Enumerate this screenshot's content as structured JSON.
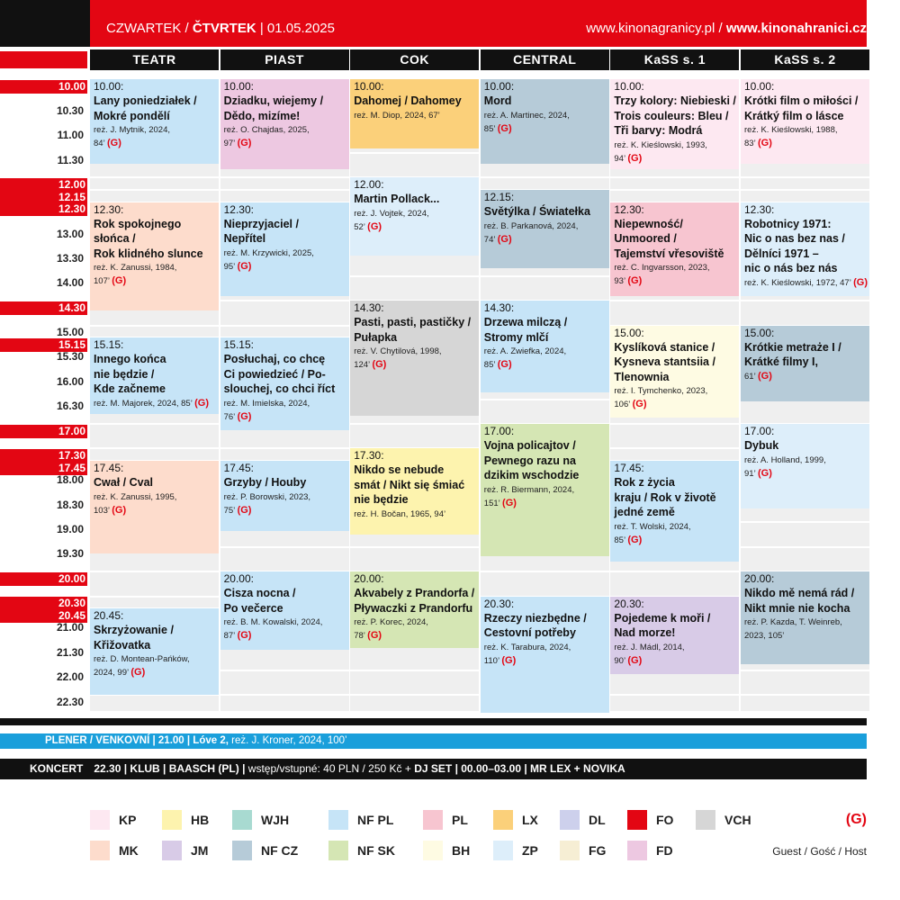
{
  "header": {
    "left": [
      {
        "text": "CZWARTEK / ",
        "bold": false
      },
      {
        "text": "ČTVRTEK",
        "bold": true
      },
      {
        "text": " | 01.05.2025",
        "bold": false
      }
    ],
    "right": [
      {
        "text": "www.kinonagranicy.pl / ",
        "bold": false
      },
      {
        "text": "www.kinonahranici.cz",
        "bold": true
      }
    ]
  },
  "times": [
    {
      "label": "10.00",
      "highlight": true
    },
    {
      "label": "10.30",
      "highlight": false
    },
    {
      "label": "11.00",
      "highlight": false
    },
    {
      "label": "11.30",
      "highlight": false
    },
    {
      "label": "12.00",
      "highlight": true
    },
    {
      "label": "12.15",
      "highlight": true
    },
    {
      "label": "12.30",
      "highlight": true
    },
    {
      "label": "13.00",
      "highlight": false
    },
    {
      "label": "13.30",
      "highlight": false
    },
    {
      "label": "14.00",
      "highlight": false
    },
    {
      "label": "14.30",
      "highlight": true
    },
    {
      "label": "15.00",
      "highlight": false
    },
    {
      "label": "15.15",
      "highlight": true
    },
    {
      "label": "15.30",
      "highlight": false
    },
    {
      "label": "16.00",
      "highlight": false
    },
    {
      "label": "16.30",
      "highlight": false
    },
    {
      "label": "17.00",
      "highlight": true
    },
    {
      "label": "17.30",
      "highlight": true
    },
    {
      "label": "17.45",
      "highlight": true
    },
    {
      "label": "18.00",
      "highlight": false
    },
    {
      "label": "18.30",
      "highlight": false
    },
    {
      "label": "19.00",
      "highlight": false
    },
    {
      "label": "19.30",
      "highlight": false
    },
    {
      "label": "20.00",
      "highlight": true
    },
    {
      "label": "20.30",
      "highlight": true
    },
    {
      "label": "20.45",
      "highlight": true
    },
    {
      "label": "21.00",
      "highlight": false
    },
    {
      "label": "21.30",
      "highlight": false
    },
    {
      "label": "22.00",
      "highlight": false
    },
    {
      "label": "22.30",
      "highlight": false
    }
  ],
  "columns": [
    {
      "name": "TEATR",
      "events": [
        {
          "time": "10.00:",
          "title": [
            "Lany poniedziałek /",
            "Mokré pondělí"
          ],
          "credits": [
            "reż. J. Mytnik, 2024,",
            "84’"
          ],
          "guest": "(G)",
          "color": "#c6e4f7"
        },
        {
          "time": "12.30:",
          "title": [
            "Rok spokojnego",
            "słońca /",
            "Rok klidného slunce"
          ],
          "credits": [
            "reż. K. Zanussi, 1984,",
            "107’"
          ],
          "guest": "(G)",
          "color": "#fddccc"
        },
        {
          "time": "15.15:",
          "title": [
            "Innego końca",
            "nie będzie /",
            "Kde začneme"
          ],
          "credits": [
            "reż. M. Majorek, 2024, 85’"
          ],
          "guest": "(G)",
          "color": "#c6e4f7"
        },
        {
          "time": "17.45:",
          "title": [
            "Cwał / Cval"
          ],
          "credits": [
            "reż. K. Zanussi, 1995,",
            "103’"
          ],
          "guest": "(G)",
          "color": "#fddccc"
        },
        {
          "time": "20.45:",
          "title": [
            "Skrzyżowanie /",
            "Křižovatka"
          ],
          "credits": [
            "reż. D. Montean-Pańków,",
            "2024, 99’"
          ],
          "guest": "(G)",
          "color": "#c6e4f7"
        }
      ]
    },
    {
      "name": "PIAST",
      "events": [
        {
          "time": "10.00:",
          "title": [
            "Dziadku, wiejemy /",
            "Dědo, mizíme!"
          ],
          "credits": [
            "reż. O. Chajdas, 2025,",
            "97’"
          ],
          "guest": "(G)",
          "color": "#edc8e1"
        },
        {
          "time": "12.30:",
          "title": [
            "Nieprzyjaciel /",
            "Nepřítel"
          ],
          "credits": [
            "reż. M. Krzywicki, 2025,",
            "95’"
          ],
          "guest": "(G)",
          "color": "#c6e4f7"
        },
        {
          "time": "15.15:",
          "title": [
            "Posłuchaj, co chcę",
            "Ci powiedzieć / Po-",
            "slouchej, co chci říct"
          ],
          "credits": [
            "reż. M. Imielska, 2024,",
            "76’"
          ],
          "guest": "(G)",
          "color": "#c6e4f7"
        },
        {
          "time": "17.45:",
          "title": [
            "Grzyby / Houby"
          ],
          "credits": [
            "reż. P. Borowski, 2023,",
            "75’"
          ],
          "guest": "(G)",
          "color": "#c6e4f7"
        },
        {
          "time": "20.00:",
          "title": [
            "Cisza nocna /",
            "Po večerce"
          ],
          "credits": [
            "reż. B. M. Kowalski, 2024,",
            "87’"
          ],
          "guest": "(G)",
          "color": "#c6e4f7"
        }
      ]
    },
    {
      "name": "COK",
      "events": [
        {
          "time": "10.00:",
          "title": [
            "Dahomej / Dahomey"
          ],
          "credits": [
            "reż. M. Diop, 2024, 67’"
          ],
          "color": "#fbd07a"
        },
        {
          "time": "12.00:",
          "title": [
            "Martin Pollack..."
          ],
          "credits": [
            "reż. J. Vojtek, 2024,",
            "52’"
          ],
          "guest": "(G)",
          "color": "#ddeefa"
        },
        {
          "time": "14.30:",
          "title": [
            "Pasti, pasti, pastičky /",
            "Pułapka"
          ],
          "credits": [
            "reż. V. Chytilová, 1998,",
            "124’"
          ],
          "guest": "(G)",
          "color": "#d6d6d6"
        },
        {
          "time": "17.30:",
          "title": [
            "Nikdo se nebude",
            "smát / Nikt się śmiać",
            "nie będzie"
          ],
          "credits": [
            "reż. H. Bočan, 1965, 94’"
          ],
          "color": "#fdf3ae"
        },
        {
          "time": "20.00:",
          "title": [
            "Akvabely z Prandorfa /",
            "Pływaczki z Prandorfu"
          ],
          "credits": [
            "reż. P. Korec, 2024,",
            "78’"
          ],
          "guest": "(G)",
          "color": "#d5e6b4"
        }
      ]
    },
    {
      "name": "CENTRAL",
      "events": [
        {
          "time": "10.00:",
          "title": [
            "Mord"
          ],
          "credits": [
            "reż. A. Martinec, 2024,",
            "85’"
          ],
          "guest": "(G)",
          "color": "#b6cbd8"
        },
        {
          "time": "12.15:",
          "title": [
            "Světýlka / Światełka"
          ],
          "credits": [
            "reż. B. Parkanová, 2024,",
            "74’"
          ],
          "guest": "(G)",
          "color": "#b6cbd8"
        },
        {
          "time": "14.30:",
          "title": [
            "Drzewa milczą /",
            "Stromy mlčí"
          ],
          "credits": [
            "reż. A. Zwiefka, 2024,",
            "85’"
          ],
          "guest": "(G)",
          "color": "#c6e4f7"
        },
        {
          "time": "17.00:",
          "title": [
            "Vojna policajtov /",
            "Pewnego razu na",
            "dzikim wschodzie"
          ],
          "credits": [
            "reż. R. Biermann, 2024,",
            "151’"
          ],
          "guest": "(G)",
          "color": "#d5e6b4"
        },
        {
          "time": "20.30:",
          "title": [
            "Rzeczy niezbędne /",
            "Cestovní potřeby"
          ],
          "credits": [
            "reż. K. Tarabura, 2024,",
            "110’"
          ],
          "guest": "(G)",
          "color": "#c6e4f7"
        }
      ]
    },
    {
      "name": "KaSS s. 1",
      "events": [
        {
          "time": "10.00:",
          "title": [
            "Trzy kolory: Niebieski /",
            "Trois couleurs: Bleu /",
            "Tři barvy: Modrá"
          ],
          "credits": [
            "reż. K. Kieślowski, 1993,",
            "94’"
          ],
          "guest": "(G)",
          "color": "#fde8f1"
        },
        {
          "time": "12.30:",
          "title": [
            "Niepewność/",
            "Unmoored /",
            "Tajemství vřesoviště"
          ],
          "credits": [
            "reż. C. Ingvarsson, 2023,",
            "93’"
          ],
          "guest": "(G)",
          "color": "#f7c5d0"
        },
        {
          "time": "15.00:",
          "title": [
            "Kyslíková stanice /",
            "Kysneva stantsiia /",
            "Tlenownia"
          ],
          "credits": [
            "reż. I. Tymchenko, 2023,",
            "106’"
          ],
          "guest": "(G)",
          "color": "#fefbe3"
        },
        {
          "time": "17.45:",
          "title": [
            "Rok z życia",
            "kraju / Rok v životě",
            "jedné země"
          ],
          "credits": [
            "reż. T. Wolski, 2024,",
            "85’"
          ],
          "guest": "(G)",
          "color": "#c6e4f7"
        },
        {
          "time": "20.30:",
          "title": [
            "Pojedeme k moři /",
            "Nad morze!"
          ],
          "credits": [
            "reż. J. Mádl, 2014,",
            "90’"
          ],
          "guest": "(G)",
          "color": "#d8cbe7"
        }
      ]
    },
    {
      "name": "KaSS s. 2",
      "events": [
        {
          "time": "10.00:",
          "title": [
            "Krótki film o miłości /",
            "Krátký film o lásce"
          ],
          "credits": [
            "reż. K. Kieślowski, 1988,",
            "83’"
          ],
          "guest": "(G)",
          "color": "#fde8f1"
        },
        {
          "time": "12.30:",
          "title": [
            "Robotnicy 1971:",
            "Nic o nas bez nas /",
            "Dělníci 1971 –",
            "nic o nás bez nás"
          ],
          "credits": [
            "reż. K. Kieślowski, 1972, 47’"
          ],
          "guest": "(G)",
          "color": "#ddeefa"
        },
        {
          "time": "15.00:",
          "title": [
            "Krótkie metraże I /",
            "Krátké filmy I,"
          ],
          "credits": [
            "61’"
          ],
          "guest": "(G)",
          "color": "#b6cbd8"
        },
        {
          "time": "17.00:",
          "title": [
            "Dybuk"
          ],
          "credits": [
            "reż. A. Holland, 1999,",
            "91’"
          ],
          "guest": "(G)",
          "color": "#ddeefa"
        },
        {
          "time": "20.00:",
          "title": [
            "Nikdo mě nemá rád /",
            "Nikt mnie nie kocha"
          ],
          "credits": [
            "reż. P. Kazda, T. Weinreb,",
            "2023, 105’"
          ],
          "color": "#b6cbd8"
        }
      ]
    }
  ],
  "plener": [
    {
      "text": "PLENER / VENKOVNÍ | 21.00 | Lóve 2,",
      "bold": true
    },
    {
      "text": " reż. J. Kroner, 2024, 100’",
      "bold": false
    }
  ],
  "koncert": [
    {
      "text": "KONCERT",
      "bold": true
    },
    {
      "text": "22.30 | KLUB | BAASCH (PL) |",
      "bold": true
    },
    {
      "text": " wstęp/vstupné: 40 PLN / 250 Kč + ",
      "bold": false
    },
    {
      "text": "DJ SET",
      "bold": true
    },
    {
      "text": " | 00.00–03.00 | MR LEX + NOVIKA",
      "bold": true
    }
  ],
  "legend": {
    "items": [
      {
        "code": "KP",
        "color": "#fde8f1"
      },
      {
        "code": "HB",
        "color": "#fdf3ae"
      },
      {
        "code": "WJH",
        "color": "#a8dad1"
      },
      {
        "code": "NF PL",
        "color": "#c6e4f7"
      },
      {
        "code": "PL",
        "color": "#f7c5d0"
      },
      {
        "code": "LX",
        "color": "#fbd07a"
      },
      {
        "code": "DL",
        "color": "#cdd0ec"
      },
      {
        "code": "FO",
        "color": "#e30613"
      },
      {
        "code": "VCH",
        "color": "#d6d6d6"
      },
      {
        "code": "MK",
        "color": "#fddccc"
      },
      {
        "code": "JM",
        "color": "#d8cbe7"
      },
      {
        "code": "NF CZ",
        "color": "#b6cbd8"
      },
      {
        "code": "NF SK",
        "color": "#d5e6b4"
      },
      {
        "code": "BH",
        "color": "#fefbe3"
      },
      {
        "code": "ZP",
        "color": "#ddeefa"
      },
      {
        "code": "FG",
        "color": "#f6eed4"
      },
      {
        "code": "FD",
        "color": "#edc8e1"
      }
    ],
    "guest_mark": "(G)",
    "guest_text": "Guest / Gość / Host"
  }
}
